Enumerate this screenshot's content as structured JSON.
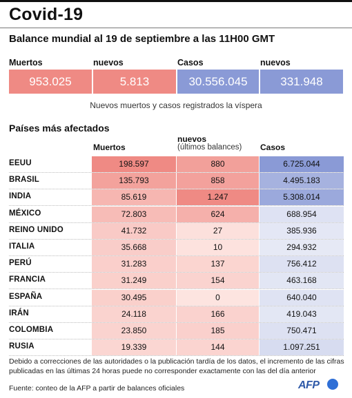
{
  "title": "Covid-19",
  "subtitle": "Balance mundial al 19 de septiembre a las 11H00 GMT",
  "summary": {
    "labels": [
      "Muertos",
      "nuevos",
      "Casos",
      "nuevos"
    ],
    "values": [
      "953.025",
      "5.813",
      "30.556.045",
      "331.948"
    ],
    "colors": [
      "#ef8a84",
      "#ef8a84",
      "#8a9ad6",
      "#8a9ad6"
    ],
    "note": "Nuevos muertos y casos registrados la víspera"
  },
  "table": {
    "section_title": "Países más afectados",
    "headers": {
      "muertos": "Muertos",
      "nuevos": "nuevos",
      "nuevos_sub": "(últimos balances)",
      "casos": "Casos"
    },
    "rows": [
      {
        "country": "EEUU",
        "muertos": "198.597",
        "nuevos": "880",
        "casos": "6.725.044"
      },
      {
        "country": "BRASIL",
        "muertos": "135.793",
        "nuevos": "858",
        "casos": "4.495.183"
      },
      {
        "country": "INDIA",
        "muertos": "85.619",
        "nuevos": "1.247",
        "casos": "5.308.014"
      },
      {
        "country": "MÉXICO",
        "muertos": "72.803",
        "nuevos": "624",
        "casos": "688.954"
      },
      {
        "country": "REINO UNIDO",
        "muertos": "41.732",
        "nuevos": "27",
        "casos": "385.936"
      },
      {
        "country": "ITALIA",
        "muertos": "35.668",
        "nuevos": "10",
        "casos": "294.932"
      },
      {
        "country": "PERÚ",
        "muertos": "31.283",
        "nuevos": "137",
        "casos": "756.412"
      },
      {
        "country": "FRANCIA",
        "muertos": "31.249",
        "nuevos": "154",
        "casos": "463.168"
      },
      {
        "country": "ESPAÑA",
        "muertos": "30.495",
        "nuevos": "0",
        "casos": "640.040"
      },
      {
        "country": "IRÁN",
        "muertos": "24.118",
        "nuevos": "166",
        "casos": "419.043"
      },
      {
        "country": "COLOMBIA",
        "muertos": "23.850",
        "nuevos": "185",
        "casos": "750.471"
      },
      {
        "country": "RUSIA",
        "muertos": "19.339",
        "nuevos": "144",
        "casos": "1.097.251"
      }
    ]
  },
  "footnote": "Debido a correcciones de las autoridades o la publicación tardía de los datos, el incremento de las cifras publicadas en las últimas 24 horas puede no corresponder exactamente con las del día anterior",
  "source": "Fuente: conteo de la AFP a partir de balances oficiales",
  "logo_text": "AFP",
  "colors": {
    "deaths_max": "#ef8a84",
    "cases_max": "#8a9ad6",
    "base_red": "#fde4e0",
    "base_blue": "#eef0f8"
  }
}
